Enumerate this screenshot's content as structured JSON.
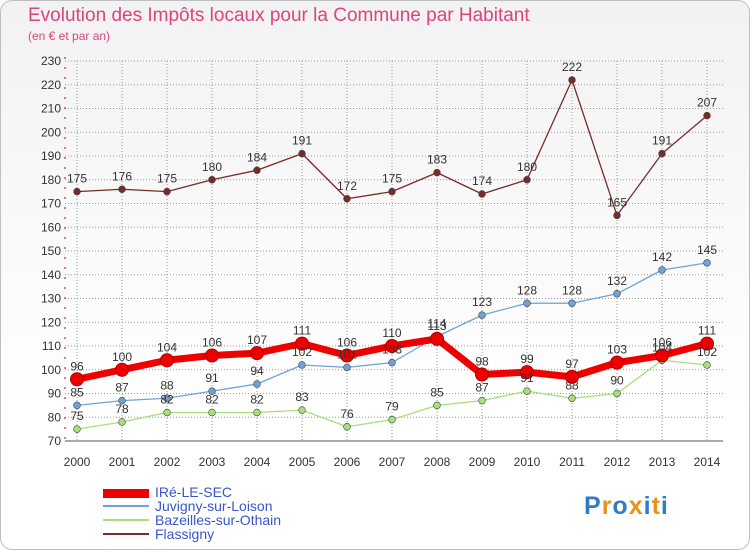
{
  "header": {
    "title": "Evolution des Impôts locaux pour la Commune par Habitant",
    "subtitle": "(en € et par an)"
  },
  "colors": {
    "title": "#d9457c",
    "legend_text": "#3a55cc",
    "grid": "#9a9a9a",
    "axis_text": "#333333"
  },
  "legend": [
    {
      "label": "IRé-LE-SEC",
      "color": "#ee0000"
    },
    {
      "label": "Juvigny-sur-Loison",
      "color": "#6fa3d8"
    },
    {
      "label": "Bazeilles-sur-Othain",
      "color": "#a6e07a"
    },
    {
      "label": "Flassigny",
      "color": "#7a2a2a"
    }
  ],
  "logo": {
    "text": "Proxiti",
    "letter_colors": [
      "#2f7dc4",
      "#e8921b",
      "#2f7dc4",
      "#e8921b",
      "#2f7dc4",
      "#e8921b",
      "#2f7dc4"
    ]
  },
  "chart_data": {
    "type": "line",
    "title": "Evolution des Impôts locaux pour la Commune par Habitant",
    "ylabel": "(en € et par an)",
    "xlabel": "",
    "ylim": [
      70,
      230
    ],
    "ytick_step": 10,
    "grid": true,
    "legend_position": "bottom-left",
    "categories": [
      "2000",
      "2001",
      "2002",
      "2003",
      "2004",
      "2005",
      "2006",
      "2007",
      "2008",
      "2009",
      "2010",
      "2011",
      "2012",
      "2013",
      "2014"
    ],
    "series": [
      {
        "name": "Flassigny",
        "color": "#7a2a2a",
        "values": [
          175,
          176,
          175,
          180,
          184,
          191,
          172,
          175,
          183,
          174,
          180,
          222,
          165,
          191,
          207
        ]
      },
      {
        "name": "Juvigny-sur-Loison",
        "color": "#6fa3d8",
        "values": [
          85,
          87,
          88,
          91,
          94,
          102,
          101,
          103,
          114,
          123,
          128,
          128,
          132,
          142,
          145
        ]
      },
      {
        "name": "Bazeilles-sur-Othain",
        "color": "#a6e07a",
        "values": [
          75,
          78,
          82,
          82,
          82,
          83,
          76,
          79,
          85,
          87,
          91,
          88,
          90,
          104,
          102
        ]
      },
      {
        "name": "IRé-LE-SEC",
        "color": "#ee0000",
        "values": [
          96,
          100,
          104,
          106,
          107,
          111,
          106,
          110,
          113,
          98,
          99,
          97,
          103,
          106,
          111
        ]
      }
    ]
  }
}
